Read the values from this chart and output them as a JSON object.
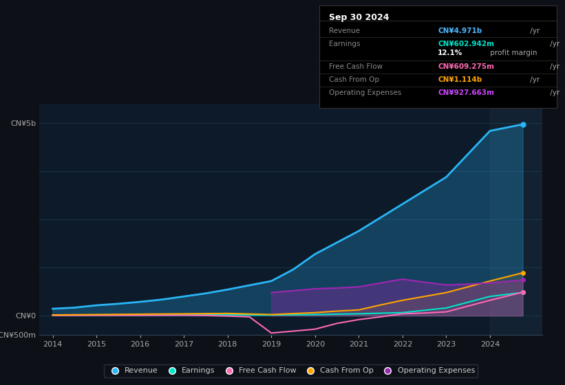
{
  "bg_color": "#0d1117",
  "plot_bg_color": "#0d1a2a",
  "title_box": {
    "date": "Sep 30 2024",
    "rows": [
      {
        "label": "Revenue",
        "value": "CN¥4.971b /yr",
        "value_color": "#4db8ff"
      },
      {
        "label": "Earnings",
        "value": "CN¥602.942m /yr",
        "value_color": "#00e5cc"
      },
      {
        "label": "",
        "value": "12.1% profit margin",
        "value_color": "#ffffff"
      },
      {
        "label": "Free Cash Flow",
        "value": "CN¥609.275m /yr",
        "value_color": "#ff69b4"
      },
      {
        "label": "Cash From Op",
        "value": "CN¥1.114b /yr",
        "value_color": "#ffa500"
      },
      {
        "label": "Operating Expenses",
        "value": "CN¥927.663m /yr",
        "value_color": "#cc44ff"
      }
    ]
  },
  "years": [
    2014,
    2014.5,
    2015,
    2015.5,
    2016,
    2016.5,
    2017,
    2017.5,
    2018,
    2018.5,
    2019,
    2019.5,
    2020,
    2020.5,
    2021,
    2021.5,
    2022,
    2022.5,
    2023,
    2023.5,
    2024,
    2024.75
  ],
  "revenue": [
    180,
    210,
    270,
    310,
    360,
    420,
    500,
    580,
    680,
    790,
    900,
    1200,
    1600,
    1900,
    2200,
    2550,
    2900,
    3250,
    3600,
    4200,
    4800,
    4971
  ],
  "earnings": [
    10,
    12,
    15,
    16,
    18,
    20,
    22,
    23,
    25,
    22,
    20,
    25,
    30,
    40,
    50,
    65,
    80,
    140,
    200,
    350,
    500,
    603
  ],
  "free_cash_flow": [
    5,
    6,
    8,
    9,
    10,
    11,
    12,
    5,
    -10,
    -30,
    -450,
    -400,
    -350,
    -200,
    -100,
    -30,
    50,
    70,
    100,
    250,
    400,
    609
  ],
  "cash_from_op": [
    20,
    25,
    30,
    35,
    40,
    45,
    50,
    55,
    60,
    45,
    30,
    55,
    80,
    120,
    150,
    280,
    400,
    500,
    600,
    750,
    900,
    1114
  ],
  "op_expenses": [
    0,
    0,
    0,
    0,
    0,
    0,
    0,
    0,
    0,
    0,
    600,
    650,
    700,
    720,
    750,
    850,
    950,
    870,
    800,
    820,
    850,
    928
  ],
  "revenue_color": "#29b6f6",
  "earnings_color": "#00e5cc",
  "free_cash_flow_color": "#ff69b4",
  "cash_from_op_color": "#ffa500",
  "op_expenses_color": "#9c27b0",
  "ylim": [
    -500,
    5500
  ],
  "yticks": [
    -500,
    0,
    5000
  ],
  "ytick_labels": [
    "-CN¥500m",
    "CN¥0",
    "CN¥5b"
  ],
  "xticks": [
    2014,
    2015,
    2016,
    2017,
    2018,
    2019,
    2020,
    2021,
    2022,
    2023,
    2024
  ],
  "legend": [
    {
      "label": "Revenue",
      "color": "#29b6f6"
    },
    {
      "label": "Earnings",
      "color": "#00e5cc"
    },
    {
      "label": "Free Cash Flow",
      "color": "#ff69b4"
    },
    {
      "label": "Cash From Op",
      "color": "#ffa500"
    },
    {
      "label": "Operating Expenses",
      "color": "#9c27b0"
    }
  ]
}
